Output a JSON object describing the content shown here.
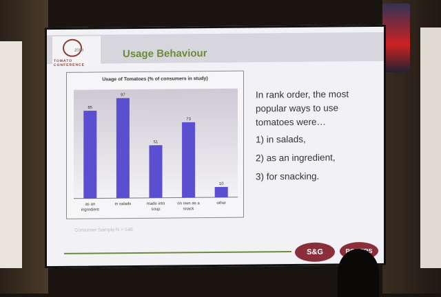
{
  "slide": {
    "title": "Usage Behaviour",
    "logo_year": "2008",
    "logo_text": "TOMATO CONFERENCE",
    "note": "Consumer Sample N = 146",
    "intro": [
      "In rank order, the most",
      "popular ways to use",
      "tomatoes were…"
    ],
    "items": [
      "1)  in salads,",
      "2)  as an ingredient,",
      "3)  for snacking."
    ],
    "sponsor_logos": [
      "S&G",
      "ROGERS"
    ]
  },
  "chart_data": {
    "type": "bar",
    "title": "Usage of Tomatoes (% of consumers in study)",
    "categories": [
      [
        "as an",
        "ingredient"
      ],
      [
        "in salads"
      ],
      [
        "made into",
        "soup"
      ],
      [
        "on own as a",
        "snack"
      ],
      [
        "other"
      ]
    ],
    "values": [
      85,
      97,
      51,
      73,
      10
    ],
    "ylim": [
      0,
      100
    ],
    "bar_color": "#5a4fd0",
    "grid": false,
    "legend": "none"
  }
}
